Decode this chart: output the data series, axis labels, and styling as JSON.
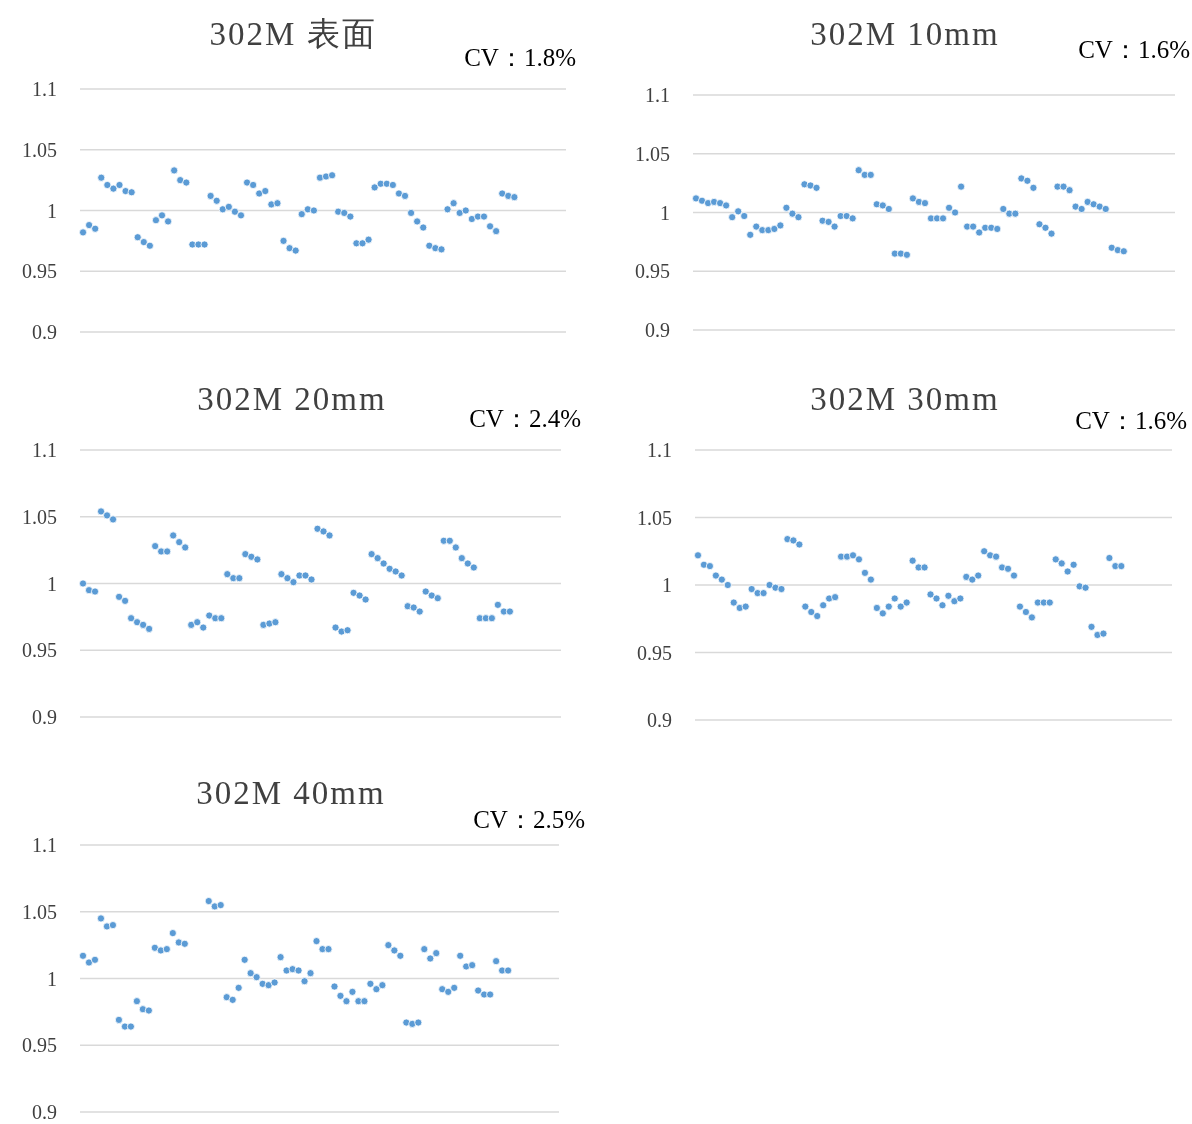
{
  "chart_data": [
    {
      "type": "scatter",
      "title": "302M 表面",
      "annotations": [
        "CV：1.8%"
      ],
      "color": "#5b9bd5",
      "marker": "circle",
      "grid": "y",
      "ylim": [
        0.9,
        1.1
      ],
      "yticks": [
        0.9,
        0.95,
        1,
        1.05,
        1.1
      ],
      "categories": [
        null,
        null,
        null,
        null,
        null,
        null,
        null,
        null,
        null,
        null,
        null,
        null,
        null,
        null,
        null,
        null,
        null,
        null,
        null,
        null,
        null,
        null,
        null,
        null,
        null,
        null,
        null,
        null,
        null,
        null,
        null,
        null,
        null,
        null,
        null,
        null,
        null,
        null,
        null,
        null,
        null,
        null,
        null,
        null,
        null,
        null,
        null,
        null,
        null,
        null,
        null,
        null,
        null,
        null,
        null,
        null,
        null,
        null,
        null,
        null,
        null,
        null,
        null,
        null,
        null,
        null,
        null,
        null,
        null,
        null,
        null,
        null,
        null,
        null,
        null,
        null,
        null,
        null,
        null,
        null
      ],
      "values": [
        0.982,
        0.988,
        0.985,
        1.027,
        1.021,
        1.018,
        1.021,
        1.016,
        1.015,
        0.978,
        0.974,
        0.971,
        0.992,
        0.996,
        0.991,
        1.033,
        1.025,
        1.023,
        0.972,
        0.972,
        0.972,
        1.012,
        1.008,
        1.001,
        1.003,
        0.999,
        0.996,
        1.023,
        1.021,
        1.014,
        1.016,
        1.005,
        1.006,
        0.975,
        0.969,
        0.967,
        0.997,
        1.001,
        1.0,
        1.027,
        1.028,
        1.029,
        0.999,
        0.998,
        0.995,
        0.973,
        0.973,
        0.976,
        1.019,
        1.022,
        1.022,
        1.021,
        1.014,
        1.012,
        0.998,
        0.991,
        0.986,
        0.971,
        0.969,
        0.968,
        1.001,
        1.006,
        0.998,
        1.0,
        0.993,
        0.995,
        0.995,
        0.987,
        0.983,
        1.014,
        1.012,
        1.011,
        null,
        null,
        null,
        null,
        null,
        null,
        null,
        null
      ]
    },
    {
      "type": "scatter",
      "title": "302M 10mm",
      "annotations": [
        "CV：1.6%"
      ],
      "color": "#5b9bd5",
      "marker": "circle",
      "grid": "y",
      "ylim": [
        0.9,
        1.1
      ],
      "yticks": [
        0.9,
        0.95,
        1,
        1.05,
        1.1
      ],
      "categories": [
        null,
        null,
        null,
        null,
        null,
        null,
        null,
        null,
        null,
        null,
        null,
        null,
        null,
        null,
        null,
        null,
        null,
        null,
        null,
        null,
        null,
        null,
        null,
        null,
        null,
        null,
        null,
        null,
        null,
        null,
        null,
        null,
        null,
        null,
        null,
        null,
        null,
        null,
        null,
        null,
        null,
        null,
        null,
        null,
        null,
        null,
        null,
        null,
        null,
        null,
        null,
        null,
        null,
        null,
        null,
        null,
        null,
        null,
        null,
        null,
        null,
        null,
        null,
        null,
        null,
        null,
        null,
        null,
        null,
        null,
        null,
        null,
        null,
        null,
        null,
        null,
        null,
        null,
        null,
        null
      ],
      "values": [
        1.012,
        1.01,
        1.008,
        1.009,
        1.008,
        1.006,
        0.996,
        1.001,
        0.997,
        0.981,
        0.988,
        0.985,
        0.985,
        0.986,
        0.989,
        1.004,
        0.999,
        0.996,
        1.024,
        1.023,
        1.021,
        0.993,
        0.992,
        0.988,
        0.997,
        0.997,
        0.995,
        1.036,
        1.032,
        1.032,
        1.007,
        1.006,
        1.003,
        0.965,
        0.965,
        0.964,
        1.012,
        1.009,
        1.008,
        0.995,
        0.995,
        0.995,
        1.004,
        1.0,
        1.022,
        0.988,
        0.988,
        0.983,
        0.987,
        0.987,
        0.986,
        1.003,
        0.999,
        0.999,
        1.029,
        1.027,
        1.021,
        0.99,
        0.987,
        0.982,
        1.022,
        1.022,
        1.019,
        1.005,
        1.003,
        1.009,
        1.007,
        1.005,
        1.003,
        0.97,
        0.968,
        0.967,
        null,
        null,
        null,
        null,
        null,
        null,
        null,
        null
      ]
    },
    {
      "type": "scatter",
      "title": "302M 20mm",
      "annotations": [
        "CV：2.4%"
      ],
      "color": "#5b9bd5",
      "marker": "circle",
      "grid": "y",
      "ylim": [
        0.9,
        1.1
      ],
      "yticks": [
        0.9,
        0.95,
        1,
        1.05,
        1.1
      ],
      "categories": [
        null,
        null,
        null,
        null,
        null,
        null,
        null,
        null,
        null,
        null,
        null,
        null,
        null,
        null,
        null,
        null,
        null,
        null,
        null,
        null,
        null,
        null,
        null,
        null,
        null,
        null,
        null,
        null,
        null,
        null,
        null,
        null,
        null,
        null,
        null,
        null,
        null,
        null,
        null,
        null,
        null,
        null,
        null,
        null,
        null,
        null,
        null,
        null,
        null,
        null,
        null,
        null,
        null,
        null,
        null,
        null,
        null,
        null,
        null,
        null,
        null,
        null,
        null,
        null,
        null,
        null,
        null,
        null,
        null,
        null,
        null,
        null,
        null,
        null,
        null,
        null,
        null,
        null,
        null,
        null
      ],
      "values": [
        1.0,
        0.995,
        0.994,
        1.054,
        1.051,
        1.048,
        0.99,
        0.987,
        0.974,
        0.971,
        0.969,
        0.966,
        1.028,
        1.024,
        1.024,
        1.036,
        1.031,
        1.027,
        0.969,
        0.971,
        0.967,
        0.976,
        0.974,
        0.974,
        1.007,
        1.004,
        1.004,
        1.022,
        1.02,
        1.018,
        0.969,
        0.97,
        0.971,
        1.007,
        1.004,
        1.001,
        1.006,
        1.006,
        1.003,
        1.041,
        1.039,
        1.036,
        0.967,
        0.964,
        0.965,
        0.993,
        0.991,
        0.988,
        1.022,
        1.019,
        1.015,
        1.011,
        1.009,
        1.006,
        0.983,
        0.982,
        0.979,
        0.994,
        0.991,
        0.989,
        1.032,
        1.032,
        1.027,
        1.019,
        1.015,
        1.012,
        0.974,
        0.974,
        0.974,
        0.984,
        0.979,
        0.979,
        null,
        null,
        null,
        null,
        null,
        null,
        null,
        null
      ]
    },
    {
      "type": "scatter",
      "title": "302M 30mm",
      "annotations": [
        "CV：1.6%"
      ],
      "color": "#5b9bd5",
      "marker": "circle",
      "grid": "y",
      "ylim": [
        0.9,
        1.1
      ],
      "yticks": [
        0.9,
        0.95,
        1,
        1.05,
        1.1
      ],
      "categories": [
        null,
        null,
        null,
        null,
        null,
        null,
        null,
        null,
        null,
        null,
        null,
        null,
        null,
        null,
        null,
        null,
        null,
        null,
        null,
        null,
        null,
        null,
        null,
        null,
        null,
        null,
        null,
        null,
        null,
        null,
        null,
        null,
        null,
        null,
        null,
        null,
        null,
        null,
        null,
        null,
        null,
        null,
        null,
        null,
        null,
        null,
        null,
        null,
        null,
        null,
        null,
        null,
        null,
        null,
        null,
        null,
        null,
        null,
        null,
        null,
        null,
        null,
        null,
        null,
        null,
        null,
        null,
        null,
        null,
        null,
        null,
        null,
        null,
        null,
        null,
        null,
        null,
        null,
        null,
        null
      ],
      "values": [
        1.022,
        1.015,
        1.014,
        1.007,
        1.004,
        1.0,
        0.987,
        0.983,
        0.984,
        0.997,
        0.994,
        0.994,
        1.0,
        0.998,
        0.997,
        1.034,
        1.033,
        1.03,
        0.984,
        0.98,
        0.977,
        0.985,
        0.99,
        0.991,
        1.021,
        1.021,
        1.022,
        1.019,
        1.009,
        1.004,
        0.983,
        0.979,
        0.984,
        0.99,
        0.984,
        0.987,
        1.018,
        1.013,
        1.013,
        0.993,
        0.99,
        0.985,
        0.992,
        0.988,
        0.99,
        1.006,
        1.004,
        1.007,
        1.025,
        1.022,
        1.021,
        1.013,
        1.012,
        1.007,
        0.984,
        0.98,
        0.976,
        0.987,
        0.987,
        0.987,
        1.019,
        1.016,
        1.01,
        1.015,
        0.999,
        0.998,
        0.969,
        0.963,
        0.964,
        1.02,
        1.014,
        1.014,
        null,
        null,
        null,
        null,
        null,
        null,
        null,
        null
      ]
    },
    {
      "type": "scatter",
      "title": "302M 40mm",
      "annotations": [
        "CV：2.5%"
      ],
      "color": "#5b9bd5",
      "marker": "circle",
      "grid": "y",
      "ylim": [
        0.9,
        1.1
      ],
      "yticks": [
        0.9,
        0.95,
        1,
        1.05,
        1.1
      ],
      "categories": [
        null,
        null,
        null,
        null,
        null,
        null,
        null,
        null,
        null,
        null,
        null,
        null,
        null,
        null,
        null,
        null,
        null,
        null,
        null,
        null,
        null,
        null,
        null,
        null,
        null,
        null,
        null,
        null,
        null,
        null,
        null,
        null,
        null,
        null,
        null,
        null,
        null,
        null,
        null,
        null,
        null,
        null,
        null,
        null,
        null,
        null,
        null,
        null,
        null,
        null,
        null,
        null,
        null,
        null,
        null,
        null,
        null,
        null,
        null,
        null,
        null,
        null,
        null,
        null,
        null,
        null,
        null,
        null,
        null,
        null,
        null,
        null,
        null,
        null,
        null,
        null,
        null,
        null,
        null,
        null
      ],
      "values": [
        1.017,
        1.012,
        1.014,
        1.045,
        1.039,
        1.04,
        0.969,
        0.964,
        0.964,
        0.983,
        0.977,
        0.976,
        1.023,
        1.021,
        1.022,
        1.034,
        1.027,
        1.026,
        null,
        null,
        null,
        1.058,
        1.054,
        1.055,
        0.986,
        0.984,
        0.993,
        1.014,
        1.004,
        1.001,
        0.996,
        0.995,
        0.997,
        1.016,
        1.006,
        1.007,
        1.006,
        0.998,
        1.004,
        1.028,
        1.022,
        1.022,
        0.994,
        0.987,
        0.983,
        0.99,
        0.983,
        0.983,
        0.996,
        0.992,
        0.995,
        1.025,
        1.021,
        1.017,
        0.967,
        0.966,
        0.967,
        1.022,
        1.015,
        1.019,
        0.992,
        0.99,
        0.993,
        1.017,
        1.009,
        1.01,
        0.991,
        0.988,
        0.988,
        1.013,
        1.006,
        1.006,
        null,
        null,
        null,
        null,
        null,
        null,
        null,
        null
      ]
    }
  ]
}
